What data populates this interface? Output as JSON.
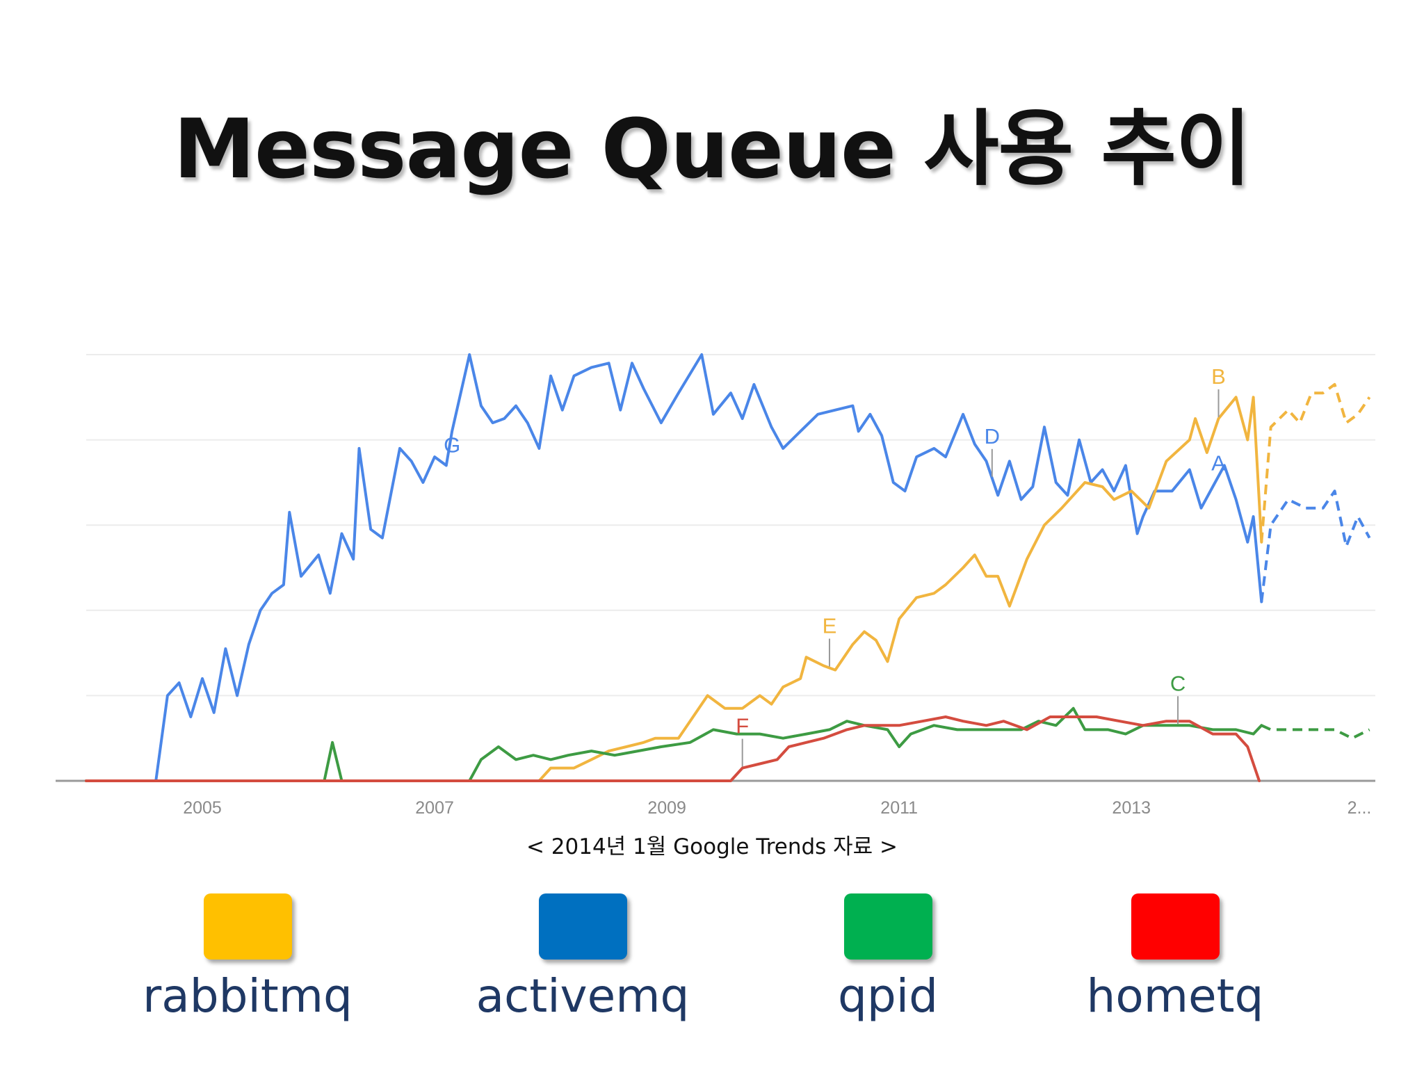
{
  "slide": {
    "title": "Message Queue 사용 추이",
    "caption": "< 2014년 1월  Google Trends 자료 >"
  },
  "legend": [
    {
      "label": "rabbitmq",
      "color": "#FFC000"
    },
    {
      "label": "activemq",
      "color": "#0070C0"
    },
    {
      "label": "qpid",
      "color": "#00B050"
    },
    {
      "label": "hometq",
      "color": "#FF0000"
    }
  ],
  "chart_data": {
    "type": "line",
    "x_tick_labels": [
      "2005",
      "2007",
      "2009",
      "2011",
      "2013",
      "2..."
    ],
    "xlim": [
      2004.0,
      2015.1
    ],
    "ylim": [
      0,
      100
    ],
    "grid": true,
    "forecast_from": 2014.12,
    "series": [
      {
        "color": "#4A86E8",
        "points": [
          [
            2004.0,
            0
          ],
          [
            2004.6,
            0
          ],
          [
            2004.7,
            20
          ],
          [
            2004.8,
            23
          ],
          [
            2004.9,
            15
          ],
          [
            2005.0,
            24
          ],
          [
            2005.1,
            16
          ],
          [
            2005.2,
            31
          ],
          [
            2005.3,
            20
          ],
          [
            2005.4,
            32
          ],
          [
            2005.5,
            40
          ],
          [
            2005.6,
            44
          ],
          [
            2005.7,
            46
          ],
          [
            2005.75,
            63
          ],
          [
            2005.85,
            48
          ],
          [
            2006.0,
            53
          ],
          [
            2006.1,
            44
          ],
          [
            2006.2,
            58
          ],
          [
            2006.3,
            52
          ],
          [
            2006.35,
            78
          ],
          [
            2006.45,
            59
          ],
          [
            2006.55,
            57
          ],
          [
            2006.7,
            78
          ],
          [
            2006.8,
            75
          ],
          [
            2006.9,
            70
          ],
          [
            2007.0,
            76
          ],
          [
            2007.1,
            74
          ],
          [
            2007.15,
            82
          ],
          [
            2007.3,
            100
          ],
          [
            2007.4,
            88
          ],
          [
            2007.5,
            84
          ],
          [
            2007.6,
            85
          ],
          [
            2007.7,
            88
          ],
          [
            2007.8,
            84
          ],
          [
            2007.9,
            78
          ],
          [
            2008.0,
            95
          ],
          [
            2008.1,
            87
          ],
          [
            2008.2,
            95
          ],
          [
            2008.35,
            97
          ],
          [
            2008.5,
            98
          ],
          [
            2008.6,
            87
          ],
          [
            2008.7,
            98
          ],
          [
            2008.8,
            92
          ],
          [
            2008.95,
            84
          ],
          [
            2009.1,
            91
          ],
          [
            2009.3,
            100
          ],
          [
            2009.4,
            86
          ],
          [
            2009.55,
            91
          ],
          [
            2009.65,
            85
          ],
          [
            2009.75,
            93
          ],
          [
            2009.9,
            83
          ],
          [
            2010.0,
            78
          ],
          [
            2010.15,
            82
          ],
          [
            2010.3,
            86
          ],
          [
            2010.45,
            87
          ],
          [
            2010.6,
            88
          ],
          [
            2010.65,
            82
          ],
          [
            2010.75,
            86
          ],
          [
            2010.85,
            81
          ],
          [
            2010.95,
            70
          ],
          [
            2011.05,
            68
          ],
          [
            2011.15,
            76
          ],
          [
            2011.3,
            78
          ],
          [
            2011.4,
            76
          ],
          [
            2011.55,
            86
          ],
          [
            2011.65,
            79
          ],
          [
            2011.75,
            75
          ],
          [
            2011.85,
            67
          ],
          [
            2011.95,
            75
          ],
          [
            2012.05,
            66
          ],
          [
            2012.15,
            69
          ],
          [
            2012.25,
            83
          ],
          [
            2012.35,
            70
          ],
          [
            2012.45,
            67
          ],
          [
            2012.55,
            80
          ],
          [
            2012.65,
            70
          ],
          [
            2012.75,
            73
          ],
          [
            2012.85,
            68
          ],
          [
            2012.95,
            74
          ],
          [
            2013.05,
            58
          ],
          [
            2013.1,
            62
          ],
          [
            2013.2,
            68
          ],
          [
            2013.35,
            68
          ],
          [
            2013.5,
            73
          ],
          [
            2013.6,
            64
          ],
          [
            2013.7,
            69
          ],
          [
            2013.8,
            74
          ],
          [
            2013.9,
            66
          ],
          [
            2014.0,
            56
          ],
          [
            2014.05,
            62
          ],
          [
            2014.12,
            42
          ],
          [
            2014.2,
            60
          ],
          [
            2014.35,
            66
          ],
          [
            2014.5,
            64
          ],
          [
            2014.65,
            64
          ],
          [
            2014.75,
            68
          ],
          [
            2014.85,
            55
          ],
          [
            2014.95,
            62
          ],
          [
            2015.05,
            57
          ]
        ]
      },
      {
        "color": "#F1B53F",
        "points": [
          [
            2004.0,
            0
          ],
          [
            2007.9,
            0
          ],
          [
            2008.0,
            3
          ],
          [
            2008.2,
            3
          ],
          [
            2008.35,
            5
          ],
          [
            2008.5,
            7
          ],
          [
            2008.65,
            8
          ],
          [
            2008.8,
            9
          ],
          [
            2008.9,
            10
          ],
          [
            2009.1,
            10
          ],
          [
            2009.2,
            14
          ],
          [
            2009.35,
            20
          ],
          [
            2009.5,
            17
          ],
          [
            2009.65,
            17
          ],
          [
            2009.8,
            20
          ],
          [
            2009.9,
            18
          ],
          [
            2010.0,
            22
          ],
          [
            2010.15,
            24
          ],
          [
            2010.2,
            29
          ],
          [
            2010.35,
            27
          ],
          [
            2010.45,
            26
          ],
          [
            2010.6,
            32
          ],
          [
            2010.7,
            35
          ],
          [
            2010.8,
            33
          ],
          [
            2010.9,
            28
          ],
          [
            2011.0,
            38
          ],
          [
            2011.15,
            43
          ],
          [
            2011.3,
            44
          ],
          [
            2011.4,
            46
          ],
          [
            2011.55,
            50
          ],
          [
            2011.65,
            53
          ],
          [
            2011.75,
            48
          ],
          [
            2011.85,
            48
          ],
          [
            2011.95,
            41
          ],
          [
            2012.1,
            52
          ],
          [
            2012.25,
            60
          ],
          [
            2012.4,
            64
          ],
          [
            2012.6,
            70
          ],
          [
            2012.75,
            69
          ],
          [
            2012.85,
            66
          ],
          [
            2013.0,
            68
          ],
          [
            2013.15,
            64
          ],
          [
            2013.3,
            75
          ],
          [
            2013.5,
            80
          ],
          [
            2013.55,
            85
          ],
          [
            2013.65,
            77
          ],
          [
            2013.75,
            85
          ],
          [
            2013.9,
            90
          ],
          [
            2014.0,
            80
          ],
          [
            2014.05,
            90
          ],
          [
            2014.12,
            56
          ],
          [
            2014.2,
            83
          ],
          [
            2014.35,
            87
          ],
          [
            2014.45,
            84
          ],
          [
            2014.55,
            91
          ],
          [
            2014.65,
            91
          ],
          [
            2014.75,
            93
          ],
          [
            2014.85,
            84
          ],
          [
            2014.95,
            86
          ],
          [
            2015.05,
            90
          ]
        ]
      },
      {
        "color": "#3D9B43",
        "points": [
          [
            2004.0,
            0
          ],
          [
            2006.05,
            0
          ],
          [
            2006.12,
            9
          ],
          [
            2006.2,
            0
          ],
          [
            2007.3,
            0
          ],
          [
            2007.4,
            5
          ],
          [
            2007.55,
            8
          ],
          [
            2007.7,
            5
          ],
          [
            2007.85,
            6
          ],
          [
            2008.0,
            5
          ],
          [
            2008.15,
            6
          ],
          [
            2008.35,
            7
          ],
          [
            2008.55,
            6
          ],
          [
            2008.75,
            7
          ],
          [
            2008.95,
            8
          ],
          [
            2009.2,
            9
          ],
          [
            2009.4,
            12
          ],
          [
            2009.6,
            11
          ],
          [
            2009.8,
            11
          ],
          [
            2010.0,
            10
          ],
          [
            2010.2,
            11
          ],
          [
            2010.4,
            12
          ],
          [
            2010.55,
            14
          ],
          [
            2010.7,
            13
          ],
          [
            2010.9,
            12
          ],
          [
            2011.0,
            8
          ],
          [
            2011.1,
            11
          ],
          [
            2011.3,
            13
          ],
          [
            2011.5,
            12
          ],
          [
            2011.7,
            12
          ],
          [
            2011.9,
            12
          ],
          [
            2012.05,
            12
          ],
          [
            2012.2,
            14
          ],
          [
            2012.35,
            13
          ],
          [
            2012.5,
            17
          ],
          [
            2012.6,
            12
          ],
          [
            2012.8,
            12
          ],
          [
            2012.95,
            11
          ],
          [
            2013.1,
            13
          ],
          [
            2013.3,
            13
          ],
          [
            2013.5,
            13
          ],
          [
            2013.7,
            12
          ],
          [
            2013.9,
            12
          ],
          [
            2014.05,
            11
          ],
          [
            2014.12,
            13
          ],
          [
            2014.2,
            12
          ],
          [
            2014.35,
            12
          ],
          [
            2014.55,
            12
          ],
          [
            2014.75,
            12
          ],
          [
            2014.9,
            10
          ],
          [
            2015.05,
            12
          ]
        ]
      },
      {
        "color": "#D44C3F",
        "points": [
          [
            2004.0,
            0
          ],
          [
            2009.55,
            0
          ],
          [
            2009.65,
            3
          ],
          [
            2009.8,
            4
          ],
          [
            2009.95,
            5
          ],
          [
            2010.05,
            8
          ],
          [
            2010.2,
            9
          ],
          [
            2010.35,
            10
          ],
          [
            2010.55,
            12
          ],
          [
            2010.7,
            13
          ],
          [
            2010.85,
            13
          ],
          [
            2011.0,
            13
          ],
          [
            2011.2,
            14
          ],
          [
            2011.4,
            15
          ],
          [
            2011.55,
            14
          ],
          [
            2011.75,
            13
          ],
          [
            2011.9,
            14
          ],
          [
            2012.1,
            12
          ],
          [
            2012.3,
            15
          ],
          [
            2012.5,
            15
          ],
          [
            2012.7,
            15
          ],
          [
            2012.9,
            14
          ],
          [
            2013.1,
            13
          ],
          [
            2013.3,
            14
          ],
          [
            2013.5,
            14
          ],
          [
            2013.7,
            11
          ],
          [
            2013.9,
            11
          ],
          [
            2014.0,
            8
          ],
          [
            2014.1,
            0
          ]
        ]
      }
    ],
    "annotations": [
      {
        "label": "G",
        "series": 0,
        "x": 2007.15
      },
      {
        "label": "D",
        "series": 0,
        "x": 2011.8
      },
      {
        "label": "B",
        "series": 1,
        "x": 2013.75
      },
      {
        "label": "A",
        "series": 0,
        "x": 2013.75
      },
      {
        "label": "E",
        "series": 1,
        "x": 2010.4
      },
      {
        "label": "F",
        "series": 3,
        "x": 2009.65
      },
      {
        "label": "C",
        "series": 2,
        "x": 2013.4
      }
    ]
  }
}
